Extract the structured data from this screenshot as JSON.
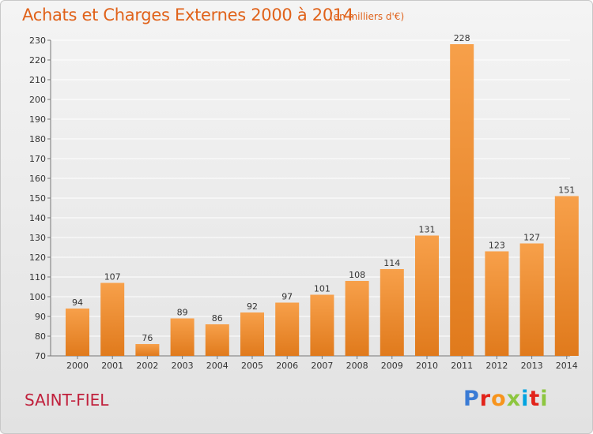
{
  "header": {
    "title": "Achats et Charges Externes 2000 à 2014",
    "unit": "(en milliers d'€)"
  },
  "footer": {
    "place": "SAINT-FIEL",
    "logo": "Proxiti",
    "logo_colors": [
      "#3a7bd5",
      "#e2231a",
      "#f7941d",
      "#8dc63f",
      "#00a3e0",
      "#e2231a",
      "#8dc63f"
    ]
  },
  "colors": {
    "bar_light": "#f7a04a",
    "bar_dark": "#e07a1c",
    "title": "#e0621a",
    "place": "#c0203c",
    "grid": "#ffffff"
  },
  "chart_data": {
    "type": "bar",
    "title": "Achats et Charges Externes 2000 à 2014",
    "subtitle": "(en milliers d'€)",
    "xlabel": "",
    "ylabel": "",
    "categories": [
      "2000",
      "2001",
      "2002",
      "2003",
      "2004",
      "2005",
      "2006",
      "2007",
      "2008",
      "2009",
      "2010",
      "2011",
      "2012",
      "2013",
      "2014"
    ],
    "values": [
      94,
      107,
      76,
      89,
      86,
      92,
      97,
      101,
      108,
      114,
      131,
      228,
      123,
      127,
      151
    ],
    "ylim": [
      70,
      230
    ],
    "yticks": [
      70,
      80,
      90,
      100,
      110,
      120,
      130,
      140,
      150,
      160,
      170,
      180,
      190,
      200,
      210,
      220,
      230
    ],
    "grid": true,
    "legend": "none"
  }
}
